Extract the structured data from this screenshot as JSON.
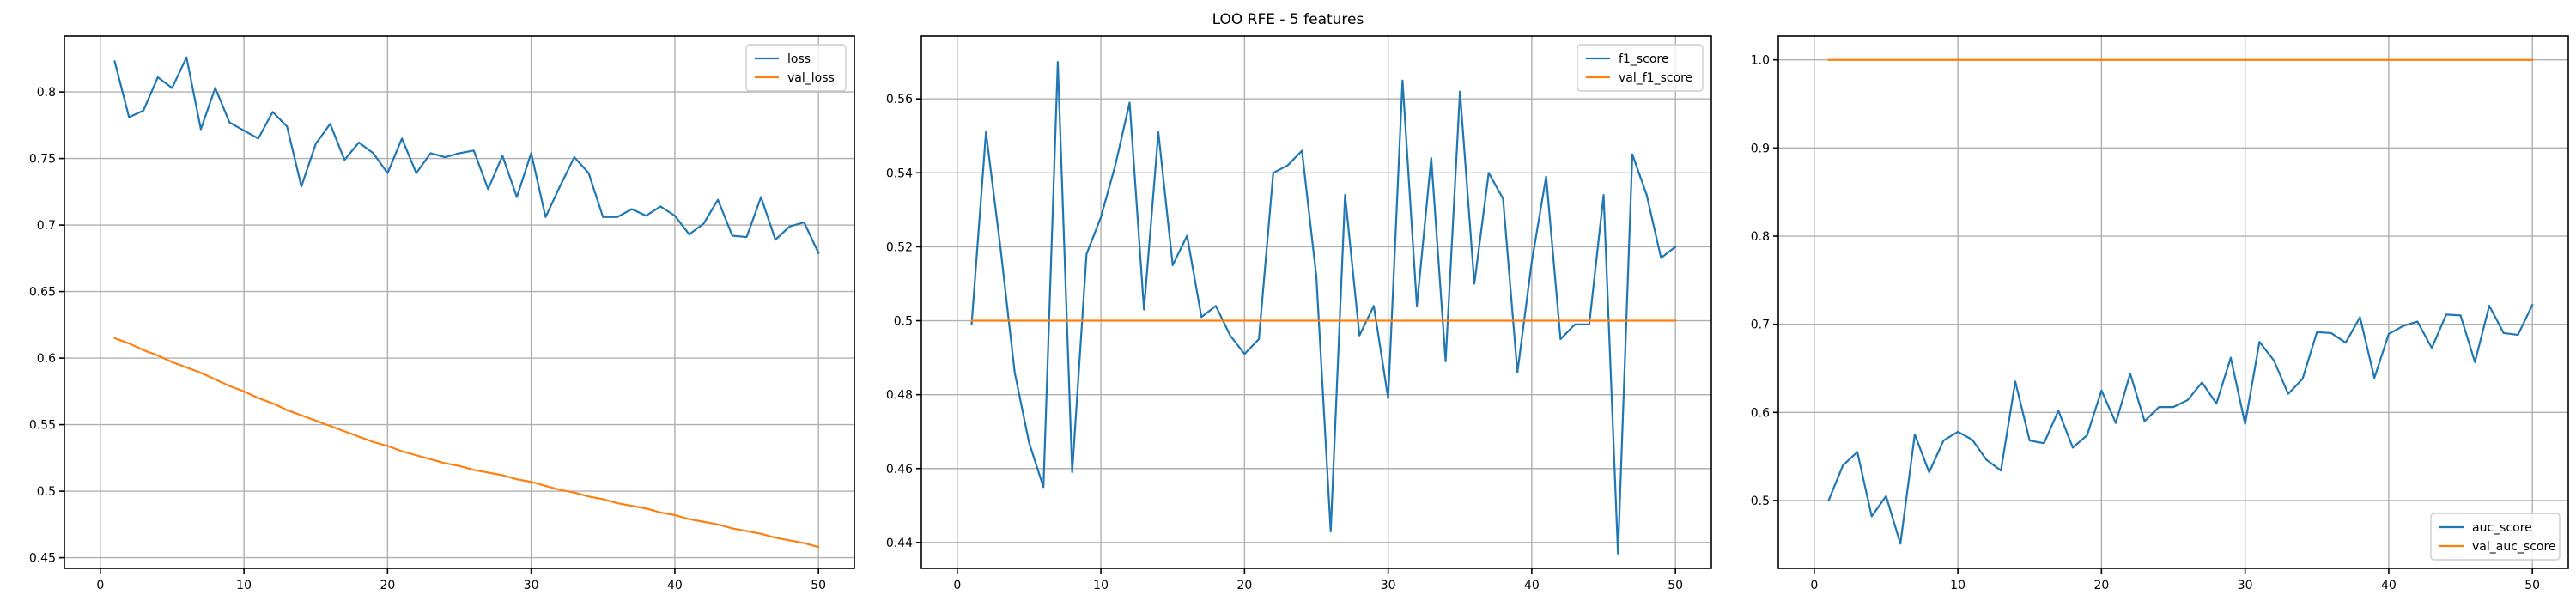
{
  "figure_title": "LOO RFE - 5 features",
  "colors": {
    "blue": "#1f77b4",
    "orange": "#ff7f0e"
  },
  "chart_data": [
    {
      "type": "line",
      "xlim": [
        -2.5,
        52.5
      ],
      "ylim": [
        0.442,
        0.842
      ],
      "xticks": [
        0,
        10,
        20,
        30,
        40,
        50
      ],
      "yticks": [
        0.45,
        0.5,
        0.55,
        0.6,
        0.65,
        0.7,
        0.75,
        0.8
      ],
      "grid": true,
      "legend_position": "top-right",
      "series": [
        {
          "name": "loss",
          "color": "#1f77b4",
          "x": [
            1,
            2,
            3,
            4,
            5,
            6,
            7,
            8,
            9,
            10,
            11,
            12,
            13,
            14,
            15,
            16,
            17,
            18,
            19,
            20,
            21,
            22,
            23,
            24,
            25,
            26,
            27,
            28,
            29,
            30,
            31,
            32,
            33,
            34,
            35,
            36,
            37,
            38,
            39,
            40,
            41,
            42,
            43,
            44,
            45,
            46,
            47,
            48,
            49,
            50
          ],
          "values": [
            0.823,
            0.781,
            0.786,
            0.811,
            0.803,
            0.826,
            0.772,
            0.803,
            0.777,
            0.771,
            0.765,
            0.785,
            0.774,
            0.729,
            0.761,
            0.776,
            0.749,
            0.762,
            0.754,
            0.739,
            0.765,
            0.739,
            0.754,
            0.751,
            0.754,
            0.756,
            0.727,
            0.752,
            0.721,
            0.754,
            0.706,
            0.729,
            0.751,
            0.739,
            0.706,
            0.706,
            0.712,
            0.707,
            0.714,
            0.707,
            0.693,
            0.701,
            0.719,
            0.692,
            0.691,
            0.721,
            0.689,
            0.699,
            0.702,
            0.679
          ]
        },
        {
          "name": "val_loss",
          "color": "#ff7f0e",
          "x": [
            1,
            2,
            3,
            4,
            5,
            6,
            7,
            8,
            9,
            10,
            11,
            12,
            13,
            14,
            15,
            16,
            17,
            18,
            19,
            20,
            21,
            22,
            23,
            24,
            25,
            26,
            27,
            28,
            29,
            30,
            31,
            32,
            33,
            34,
            35,
            36,
            37,
            38,
            39,
            40,
            41,
            42,
            43,
            44,
            45,
            46,
            47,
            48,
            49,
            50
          ],
          "values": [
            0.615,
            0.611,
            0.606,
            0.602,
            0.597,
            0.593,
            0.589,
            0.584,
            0.579,
            0.575,
            0.57,
            0.566,
            0.561,
            0.557,
            0.553,
            0.549,
            0.545,
            0.541,
            0.537,
            0.534,
            0.53,
            0.527,
            0.524,
            0.521,
            0.519,
            0.516,
            0.514,
            0.512,
            0.509,
            0.507,
            0.504,
            0.501,
            0.499,
            0.496,
            0.494,
            0.491,
            0.489,
            0.487,
            0.484,
            0.482,
            0.479,
            0.477,
            0.475,
            0.472,
            0.47,
            0.468,
            0.465,
            0.463,
            0.461,
            0.458
          ]
        }
      ]
    },
    {
      "type": "line",
      "xlim": [
        -2.5,
        52.5
      ],
      "ylim": [
        0.433,
        0.577
      ],
      "xticks": [
        0,
        10,
        20,
        30,
        40,
        50
      ],
      "yticks": [
        0.44,
        0.46,
        0.48,
        0.5,
        0.52,
        0.54,
        0.56
      ],
      "grid": true,
      "legend_position": "top-right",
      "series": [
        {
          "name": "f1_score",
          "color": "#1f77b4",
          "x": [
            1,
            2,
            3,
            4,
            5,
            6,
            7,
            8,
            9,
            10,
            11,
            12,
            13,
            14,
            15,
            16,
            17,
            18,
            19,
            20,
            21,
            22,
            23,
            24,
            25,
            26,
            27,
            28,
            29,
            30,
            31,
            32,
            33,
            34,
            35,
            36,
            37,
            38,
            39,
            40,
            41,
            42,
            43,
            44,
            45,
            46,
            47,
            48,
            49,
            50
          ],
          "values": [
            0.499,
            0.551,
            0.52,
            0.486,
            0.467,
            0.455,
            0.57,
            0.459,
            0.518,
            0.528,
            0.542,
            0.559,
            0.503,
            0.551,
            0.515,
            0.523,
            0.501,
            0.504,
            0.496,
            0.491,
            0.495,
            0.54,
            0.542,
            0.546,
            0.512,
            0.443,
            0.534,
            0.496,
            0.504,
            0.479,
            0.565,
            0.504,
            0.544,
            0.489,
            0.562,
            0.51,
            0.54,
            0.533,
            0.486,
            0.516,
            0.539,
            0.495,
            0.499,
            0.499,
            0.534,
            0.437,
            0.545,
            0.534,
            0.517,
            0.52
          ]
        },
        {
          "name": "val_f1_score",
          "color": "#ff7f0e",
          "x": [
            1,
            50
          ],
          "values": [
            0.5,
            0.5
          ]
        }
      ]
    },
    {
      "type": "line",
      "xlim": [
        -2.5,
        52.5
      ],
      "ylim": [
        0.423,
        1.027
      ],
      "xticks": [
        0,
        10,
        20,
        30,
        40,
        50
      ],
      "yticks": [
        0.5,
        0.6,
        0.7,
        0.8,
        0.9,
        1.0
      ],
      "ytick_labels": [
        "0.5",
        "0.6",
        "0.7",
        "0.8",
        "0.9",
        "1.0"
      ],
      "grid": true,
      "legend_position": "bottom-right",
      "series": [
        {
          "name": "auc_score",
          "color": "#1f77b4",
          "x": [
            1,
            2,
            3,
            4,
            5,
            6,
            7,
            8,
            9,
            10,
            11,
            12,
            13,
            14,
            15,
            16,
            17,
            18,
            19,
            20,
            21,
            22,
            23,
            24,
            25,
            26,
            27,
            28,
            29,
            30,
            31,
            32,
            33,
            34,
            35,
            36,
            37,
            38,
            39,
            40,
            41,
            42,
            43,
            44,
            45,
            46,
            47,
            48,
            49,
            50
          ],
          "values": [
            0.5,
            0.54,
            0.555,
            0.482,
            0.505,
            0.451,
            0.575,
            0.532,
            0.568,
            0.578,
            0.569,
            0.546,
            0.534,
            0.635,
            0.568,
            0.565,
            0.602,
            0.56,
            0.574,
            0.625,
            0.588,
            0.644,
            0.59,
            0.606,
            0.606,
            0.614,
            0.634,
            0.61,
            0.662,
            0.587,
            0.68,
            0.659,
            0.621,
            0.638,
            0.691,
            0.69,
            0.679,
            0.708,
            0.639,
            0.689,
            0.698,
            0.703,
            0.673,
            0.711,
            0.71,
            0.657,
            0.721,
            0.69,
            0.688,
            0.722
          ]
        },
        {
          "name": "val_auc_score",
          "color": "#ff7f0e",
          "x": [
            1,
            50
          ],
          "values": [
            1.0,
            1.0
          ]
        }
      ]
    }
  ]
}
